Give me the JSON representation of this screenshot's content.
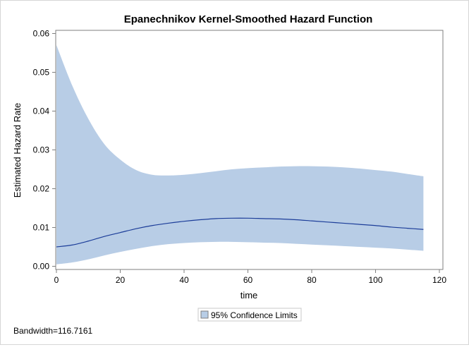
{
  "chart_data": {
    "type": "line",
    "title": "Epanechnikov Kernel-Smoothed Hazard Function",
    "xlabel": "time",
    "ylabel": "Estimated Hazard Rate",
    "xlim": [
      0,
      120
    ],
    "ylim": [
      0,
      0.06
    ],
    "xticks": [
      0,
      20,
      40,
      60,
      80,
      100,
      120
    ],
    "yticks": [
      0.0,
      0.01,
      0.02,
      0.03,
      0.04,
      0.05,
      0.06
    ],
    "xtick_labels": [
      "0",
      "20",
      "40",
      "60",
      "80",
      "100",
      "120"
    ],
    "ytick_labels": [
      "0.00",
      "0.01",
      "0.02",
      "0.03",
      "0.04",
      "0.05",
      "0.06"
    ],
    "grid": false,
    "legend_position": "bottom",
    "legend_label": "95% Confidence Limits",
    "footnote": "Bandwidth=116.7161",
    "colors": {
      "band": "#b8cde6",
      "line": "#1c3d99",
      "axis": "#7f7f7f"
    },
    "x": [
      0,
      5,
      10,
      15,
      20,
      25,
      30,
      35,
      40,
      45,
      50,
      55,
      60,
      65,
      70,
      75,
      80,
      85,
      90,
      95,
      100,
      105,
      110,
      115
    ],
    "series": [
      {
        "name": "Estimated Hazard Rate",
        "values": [
          0.005,
          0.0055,
          0.0065,
          0.0077,
          0.0087,
          0.0097,
          0.0105,
          0.0111,
          0.0116,
          0.012,
          0.0123,
          0.0124,
          0.0124,
          0.0123,
          0.0122,
          0.012,
          0.0117,
          0.0114,
          0.0111,
          0.0108,
          0.0105,
          0.0101,
          0.0098,
          0.0095
        ]
      },
      {
        "name": "Lower Confidence Limit",
        "values": [
          0.0005,
          0.001,
          0.0018,
          0.0028,
          0.0037,
          0.0045,
          0.0052,
          0.0057,
          0.006,
          0.0062,
          0.0063,
          0.0063,
          0.0062,
          0.0061,
          0.006,
          0.0058,
          0.0056,
          0.0054,
          0.0052,
          0.005,
          0.0048,
          0.0046,
          0.0043,
          0.004
        ]
      },
      {
        "name": "Upper Confidence Limit",
        "values": [
          0.057,
          0.0465,
          0.038,
          0.0315,
          0.0275,
          0.0248,
          0.0236,
          0.0234,
          0.0236,
          0.024,
          0.0245,
          0.025,
          0.0253,
          0.0255,
          0.0257,
          0.0258,
          0.0258,
          0.0257,
          0.0255,
          0.0252,
          0.0248,
          0.0244,
          0.0238,
          0.0232
        ]
      }
    ]
  }
}
